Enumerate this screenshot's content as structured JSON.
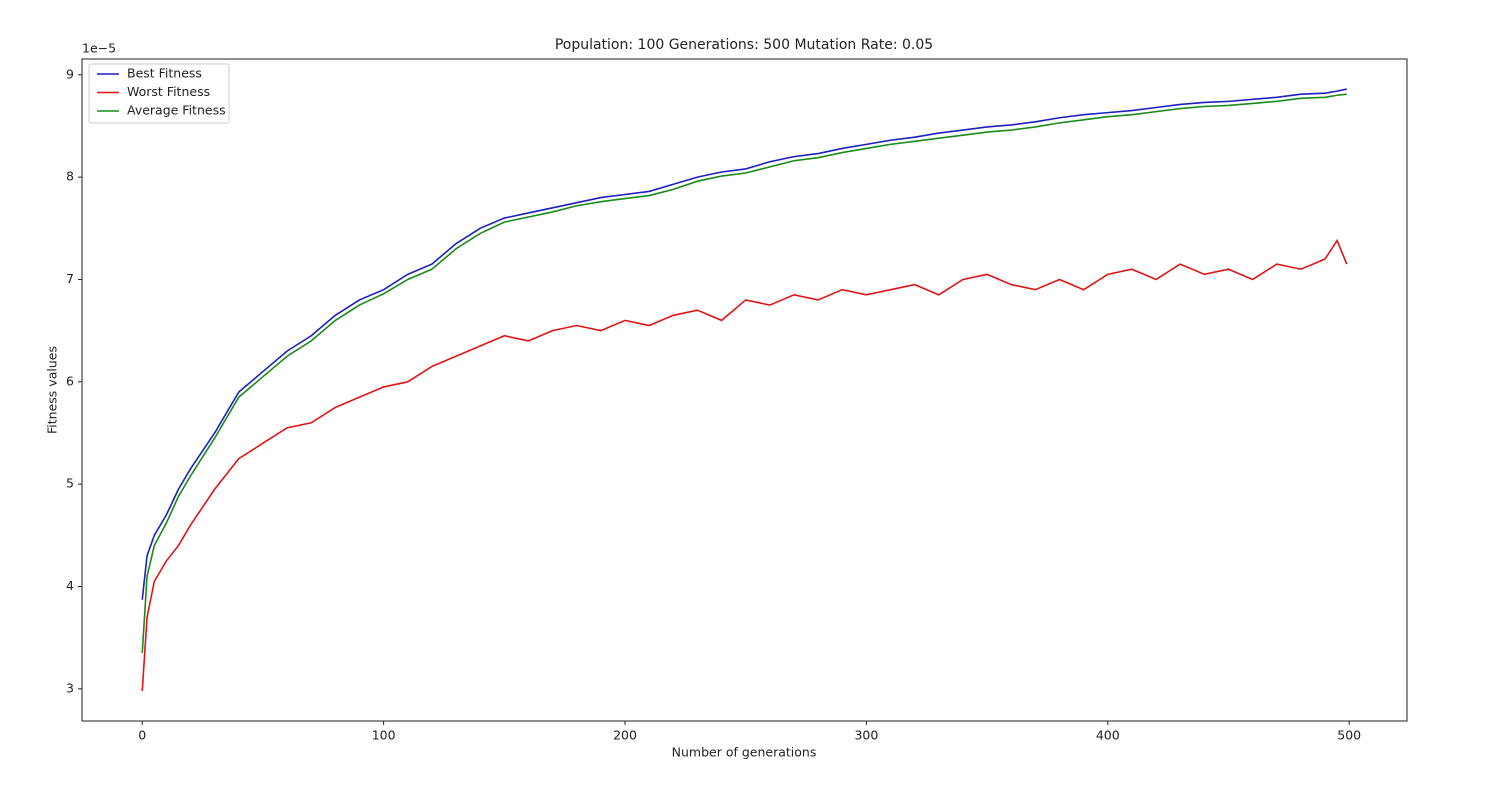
{
  "chart_data": {
    "type": "line",
    "title": "Population: 100 Generations: 500 Mutation Rate: 0.05",
    "x_label": "Number of generations",
    "y_label": "Fitness values",
    "y_offset_text": "1e−5",
    "x": [
      0,
      2,
      5,
      10,
      15,
      20,
      30,
      40,
      50,
      60,
      70,
      80,
      90,
      100,
      110,
      120,
      130,
      140,
      150,
      160,
      170,
      180,
      190,
      200,
      210,
      220,
      230,
      240,
      250,
      260,
      270,
      280,
      290,
      300,
      310,
      320,
      330,
      340,
      350,
      360,
      370,
      380,
      390,
      400,
      410,
      420,
      430,
      440,
      450,
      460,
      470,
      480,
      490,
      495,
      499
    ],
    "series": [
      {
        "name": "Best Fitness",
        "color": "#1f1fbf",
        "values": [
          3.87,
          4.3,
          4.5,
          4.7,
          4.95,
          5.15,
          5.5,
          5.9,
          6.1,
          6.3,
          6.45,
          6.65,
          6.8,
          6.9,
          7.05,
          7.15,
          7.35,
          7.5,
          7.6,
          7.65,
          7.7,
          7.75,
          7.8,
          7.83,
          7.86,
          7.93,
          8.0,
          8.05,
          8.08,
          8.15,
          8.2,
          8.23,
          8.28,
          8.32,
          8.36,
          8.39,
          8.43,
          8.46,
          8.49,
          8.51,
          8.54,
          8.58,
          8.61,
          8.63,
          8.65,
          8.68,
          8.71,
          8.73,
          8.74,
          8.76,
          8.78,
          8.81,
          8.82,
          8.84,
          8.86
        ]
      },
      {
        "name": "Worst Fitness",
        "color": "#e01414",
        "values": [
          2.98,
          3.7,
          4.05,
          4.25,
          4.4,
          4.6,
          4.95,
          5.25,
          5.4,
          5.55,
          5.6,
          5.75,
          5.85,
          5.95,
          6.0,
          6.15,
          6.25,
          6.35,
          6.45,
          6.4,
          6.5,
          6.55,
          6.5,
          6.6,
          6.55,
          6.65,
          6.7,
          6.6,
          6.8,
          6.75,
          6.85,
          6.8,
          6.9,
          6.85,
          6.9,
          6.95,
          6.85,
          7.0,
          7.05,
          6.95,
          6.9,
          7.0,
          6.9,
          7.05,
          7.1,
          7.0,
          7.15,
          7.05,
          7.1,
          7.0,
          7.15,
          7.1,
          7.2,
          7.38,
          7.15
        ]
      },
      {
        "name": "Average Fitness",
        "color": "#1a8a1a",
        "values": [
          3.35,
          4.1,
          4.4,
          4.62,
          4.88,
          5.08,
          5.45,
          5.85,
          6.05,
          6.25,
          6.4,
          6.6,
          6.75,
          6.86,
          7.0,
          7.1,
          7.3,
          7.45,
          7.56,
          7.61,
          7.66,
          7.72,
          7.76,
          7.79,
          7.82,
          7.88,
          7.96,
          8.01,
          8.04,
          8.1,
          8.16,
          8.19,
          8.24,
          8.28,
          8.32,
          8.35,
          8.38,
          8.41,
          8.44,
          8.46,
          8.49,
          8.53,
          8.56,
          8.59,
          8.61,
          8.64,
          8.67,
          8.69,
          8.7,
          8.72,
          8.74,
          8.77,
          8.78,
          8.8,
          8.81
        ]
      }
    ],
    "xlim": [
      -24.95,
      523.95
    ],
    "xticks": [
      0,
      100,
      200,
      300,
      400,
      500
    ],
    "ylim": [
      2.686,
      9.154
    ],
    "yticks": [
      3,
      4,
      5,
      6,
      7,
      8,
      9
    ],
    "grid": false,
    "legend": "upper left"
  }
}
